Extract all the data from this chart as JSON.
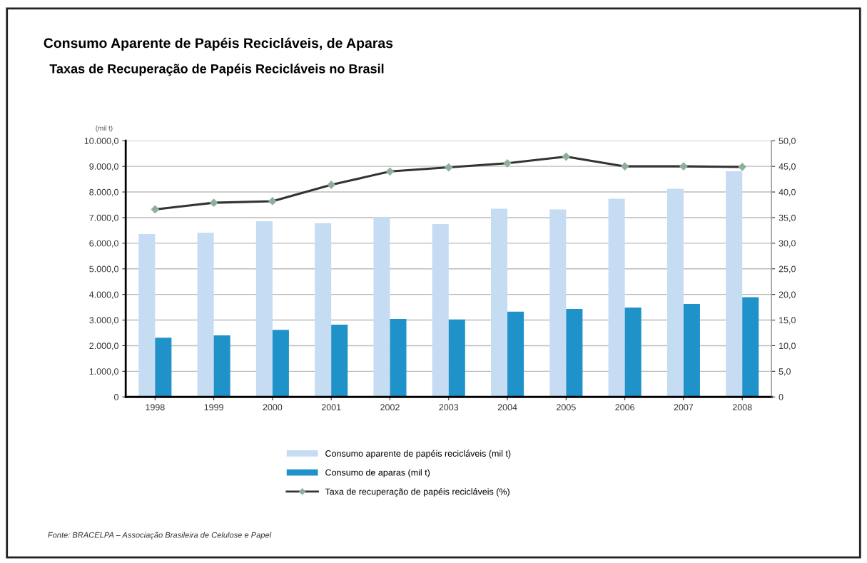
{
  "chart_data": {
    "type": "bar",
    "title": "Consumo Aparente de Papéis Recicláveis, de Aparas",
    "subtitle": "Taxas de Recuperação de Papéis Recicláveis no Brasil",
    "ylabel": "(mil t)",
    "categories": [
      "1998",
      "1999",
      "2000",
      "2001",
      "2002",
      "2003",
      "2004",
      "2005",
      "2006",
      "2007",
      "2008"
    ],
    "series": [
      {
        "name": "Consumo aparente de papéis recicláveis (mil t)",
        "color": "#c6dcf2",
        "values": [
          6360,
          6410,
          6860,
          6780,
          7010,
          6750,
          7350,
          7320,
          7740,
          8130,
          8810
        ]
      },
      {
        "name": "Consumo de aparas (mil t)",
        "color": "#1f93c9",
        "values": [
          2310,
          2400,
          2620,
          2820,
          3040,
          3020,
          3330,
          3430,
          3490,
          3630,
          3890
        ]
      },
      {
        "name": "Taxa de recuperação de papéis recicláveis (%)",
        "type": "line",
        "axis": "y2",
        "color": "#333333",
        "values": [
          36.6,
          37.9,
          38.2,
          41.4,
          44.0,
          44.8,
          45.6,
          46.9,
          45.0,
          45.0,
          44.9
        ]
      }
    ],
    "ylim": [
      0,
      10000
    ],
    "yticks": [
      {
        "value": 0,
        "label": "0"
      },
      {
        "value": 1000,
        "label": "1.000,0"
      },
      {
        "value": 2000,
        "label": "2.000,0"
      },
      {
        "value": 3000,
        "label": "3.000,0"
      },
      {
        "value": 4000,
        "label": "4.000,0"
      },
      {
        "value": 5000,
        "label": "5.000,0"
      },
      {
        "value": 6000,
        "label": "6.000,0"
      },
      {
        "value": 7000,
        "label": "7.000,0"
      },
      {
        "value": 8000,
        "label": "8.000,0"
      },
      {
        "value": 9000,
        "label": "9.000,0"
      },
      {
        "value": 10000,
        "label": "10.000,0"
      }
    ],
    "y2lim": [
      0,
      50
    ],
    "y2ticks": [
      {
        "value": 0,
        "label": "0"
      },
      {
        "value": 5,
        "label": "5,0"
      },
      {
        "value": 10,
        "label": "10,0"
      },
      {
        "value": 15,
        "label": "15,0"
      },
      {
        "value": 20,
        "label": "20,0"
      },
      {
        "value": 25,
        "label": "25,0"
      },
      {
        "value": 30,
        "label": "30,0"
      },
      {
        "value": 35,
        "label": "35,0"
      },
      {
        "value": 40,
        "label": "40,0"
      },
      {
        "value": 45,
        "label": "45,0"
      },
      {
        "value": 50,
        "label": "50,0"
      }
    ],
    "grid": "y",
    "legend": "bottom",
    "marker": "diamond",
    "line_style": "solid",
    "annotations": [
      "Fonte: BRACELPA – Associação Brasileira de Celulose e Papel"
    ]
  }
}
